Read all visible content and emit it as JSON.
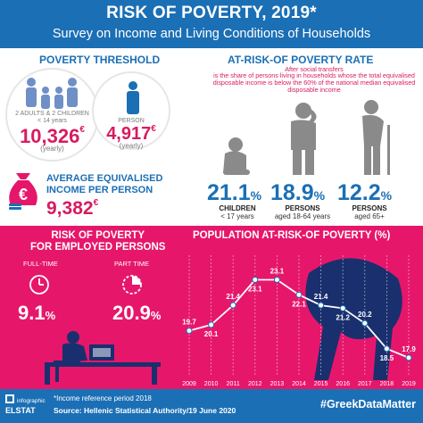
{
  "header": {
    "title": "RISK OF POVERTY, 2019*",
    "subtitle": "Survey on Income and Living Conditions of Households"
  },
  "threshold": {
    "title": "POVERTY THRESHOLD",
    "household_label_1": "2 ADULTS & 2 CHILDREN",
    "household_label_2": "< 14 years",
    "household_value": "10,326",
    "person_label": "PERSON",
    "person_value": "4,917",
    "currency": "€",
    "yearly": "(yearly)"
  },
  "income": {
    "title_1": "AVERAGE EQUIVALISED",
    "title_2": "INCOME PER PERSON",
    "value": "9,382",
    "currency": "€"
  },
  "rate": {
    "title": "AT-RISK-OF POVERTY RATE",
    "sub": "After social transfers",
    "def_1": "is the share of persons living in households whose the total equivalised",
    "def_2": "disposable income is below the 60% of the national median equivalised",
    "def_3": "disposable income",
    "children_value": "21.1",
    "children_label_1": "CHILDREN",
    "children_label_2": "< 17 years",
    "adults_value": "18.9",
    "adults_label_1": "PERSONS",
    "adults_label_2": "aged 18-64 years",
    "elderly_value": "12.2",
    "elderly_label_1": "PERSONS",
    "elderly_label_2": "aged 65+",
    "pct": "%"
  },
  "employed": {
    "title_1": "RISK OF POVERTY",
    "title_2": "FOR EMPLOYED PERSONS",
    "fulltime_label": "FULL-TIME",
    "fulltime_value": "9.1",
    "parttime_label": "PART TIME",
    "parttime_value": "20.9",
    "pct": "%"
  },
  "colors": {
    "blue": "#1b6fb5",
    "magenta": "#e6176b",
    "dark_magenta": "#d81b60",
    "navy": "#1a2f6e"
  },
  "chart_data": {
    "type": "line",
    "title": "POPULATION AT-RISK-OF POVERTY (%)",
    "x": [
      "2009",
      "2010",
      "2011",
      "2012",
      "2013",
      "2014",
      "2015",
      "2016",
      "2017",
      "2018",
      "2019"
    ],
    "values": [
      19.7,
      20.1,
      21.4,
      23.1,
      23.1,
      22.1,
      21.4,
      21.2,
      20.2,
      18.5,
      17.9
    ],
    "labels": [
      "19.7",
      "20.1",
      "21.4",
      "23.1",
      "23.1",
      "22.1",
      "21.4",
      "21.2",
      "20.2",
      "18.5",
      "17.9"
    ],
    "ylim": [
      17,
      24.5
    ],
    "grid": "vertical dashed"
  },
  "footer": {
    "logo_1": "infographic",
    "logo_2": "ELSTAT",
    "note": "*Income reference period 2018",
    "source": "Source: Hellenic Statistical Authority/19 June 2020",
    "hashtag": "#GreekDataMatter"
  }
}
